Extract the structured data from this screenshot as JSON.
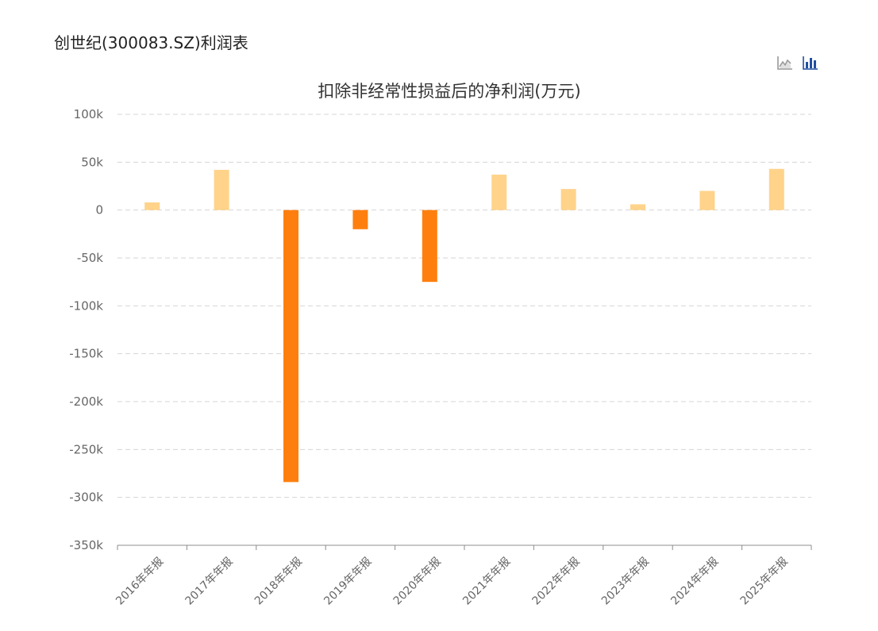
{
  "page": {
    "title": "创世纪(300083.SZ)利润表"
  },
  "toolbar": {
    "buttons": [
      {
        "name": "line-chart-icon",
        "active": false
      },
      {
        "name": "bar-chart-icon",
        "active": true
      }
    ]
  },
  "colors": {
    "positive": "#ffd38a",
    "negative": "#ff7f0e",
    "grid": "#d5d5d5",
    "axis": "#8c8c8c",
    "active_icon": "#1f4fa0",
    "inactive_icon": "#999999"
  },
  "chart_data": {
    "type": "bar",
    "title": "扣除非经常性损益后的净利润(万元)",
    "xlabel": "",
    "ylabel": "",
    "ylim": [
      -350000,
      100000
    ],
    "yticks": [
      100000,
      50000,
      0,
      -50000,
      -100000,
      -150000,
      -200000,
      -250000,
      -300000,
      -350000
    ],
    "ytick_labels": [
      "100k",
      "50k",
      "0",
      "-50k",
      "-100k",
      "-150k",
      "-200k",
      "-250k",
      "-300k",
      "-350k"
    ],
    "grid": true,
    "categories": [
      "2016年年报",
      "2017年年报",
      "2018年年报",
      "2019年年报",
      "2020年年报",
      "2021年年报",
      "2022年年报",
      "2023年年报",
      "2024年年报",
      "2025年年报"
    ],
    "values": [
      8000,
      42000,
      -284000,
      -20000,
      -75000,
      37000,
      22000,
      6000,
      20000,
      43000
    ]
  }
}
